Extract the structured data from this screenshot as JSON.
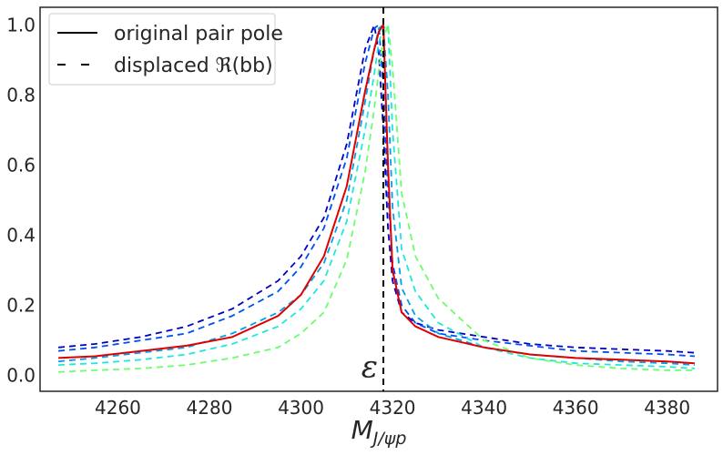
{
  "chart_data": {
    "type": "line",
    "xlabel": "M_{J/ψp}",
    "xlabel_main": "M",
    "xlabel_sub": "J/ψp",
    "ylabel": "",
    "xlim": [
      4243,
      4391
    ],
    "ylim": [
      -0.045,
      1.05
    ],
    "x_ticks": [
      4260,
      4280,
      4300,
      4320,
      4340,
      4360,
      4380
    ],
    "y_ticks": [
      0.0,
      0.2,
      0.4,
      0.6,
      0.8,
      1.0
    ],
    "x_tick_labels": [
      "4260",
      "4280",
      "4300",
      "4320",
      "4340",
      "4360",
      "4380"
    ],
    "y_tick_labels": [
      "0.0",
      "0.2",
      "0.4",
      "0.6",
      "0.8",
      "1.0"
    ],
    "grid": false,
    "legend_position": "top-left",
    "legend": [
      {
        "label": "original pair pole",
        "style": "solid"
      },
      {
        "label": "displaced ℜ(bb)",
        "style": "dashed"
      }
    ],
    "vline": {
      "x": 4318,
      "label": "ε",
      "style": "dashed",
      "color": "#000000"
    },
    "x": [
      4247,
      4255,
      4265,
      4275,
      4285,
      4295,
      4300,
      4305,
      4310,
      4314,
      4316,
      4317,
      4318,
      4319,
      4320,
      4322,
      4325,
      4330,
      4340,
      4350,
      4360,
      4370,
      4380,
      4386
    ],
    "series": [
      {
        "color": "#0000c8",
        "style": "dashed",
        "values": [
          0.08,
          0.09,
          0.11,
          0.14,
          0.19,
          0.27,
          0.34,
          0.45,
          0.66,
          0.93,
          1.0,
          0.92,
          0.7,
          0.42,
          0.27,
          0.18,
          0.15,
          0.13,
          0.11,
          0.09,
          0.08,
          0.075,
          0.07,
          0.065
        ]
      },
      {
        "color": "#0050f0",
        "style": "dashed",
        "values": [
          0.07,
          0.08,
          0.1,
          0.12,
          0.17,
          0.24,
          0.31,
          0.42,
          0.62,
          0.89,
          0.99,
          1.0,
          0.82,
          0.52,
          0.32,
          0.2,
          0.15,
          0.12,
          0.1,
          0.085,
          0.07,
          0.065,
          0.06,
          0.055
        ]
      },
      {
        "color": "#00a0e8",
        "style": "dashed",
        "values": [
          0.04,
          0.05,
          0.065,
          0.08,
          0.12,
          0.18,
          0.23,
          0.32,
          0.5,
          0.78,
          0.93,
          0.99,
          1.0,
          0.8,
          0.48,
          0.25,
          0.17,
          0.12,
          0.08,
          0.06,
          0.05,
          0.04,
          0.035,
          0.03
        ]
      },
      {
        "color": "#20e8d8",
        "style": "dashed",
        "values": [
          0.03,
          0.035,
          0.045,
          0.06,
          0.09,
          0.14,
          0.19,
          0.27,
          0.44,
          0.7,
          0.86,
          0.95,
          0.99,
          1.0,
          0.7,
          0.36,
          0.24,
          0.15,
          0.08,
          0.05,
          0.035,
          0.03,
          0.025,
          0.02
        ]
      },
      {
        "color": "#6cff6c",
        "style": "dashed",
        "values": [
          0.01,
          0.015,
          0.02,
          0.03,
          0.05,
          0.08,
          0.12,
          0.18,
          0.33,
          0.58,
          0.76,
          0.87,
          0.96,
          1.0,
          0.88,
          0.52,
          0.34,
          0.22,
          0.1,
          0.05,
          0.03,
          0.02,
          0.015,
          0.015
        ]
      },
      {
        "color": "#e00000",
        "style": "solid",
        "values": [
          0.05,
          0.055,
          0.07,
          0.085,
          0.11,
          0.17,
          0.23,
          0.34,
          0.54,
          0.81,
          0.93,
          0.98,
          1.0,
          0.6,
          0.3,
          0.18,
          0.14,
          0.11,
          0.08,
          0.06,
          0.05,
          0.045,
          0.04,
          0.035
        ]
      }
    ]
  }
}
